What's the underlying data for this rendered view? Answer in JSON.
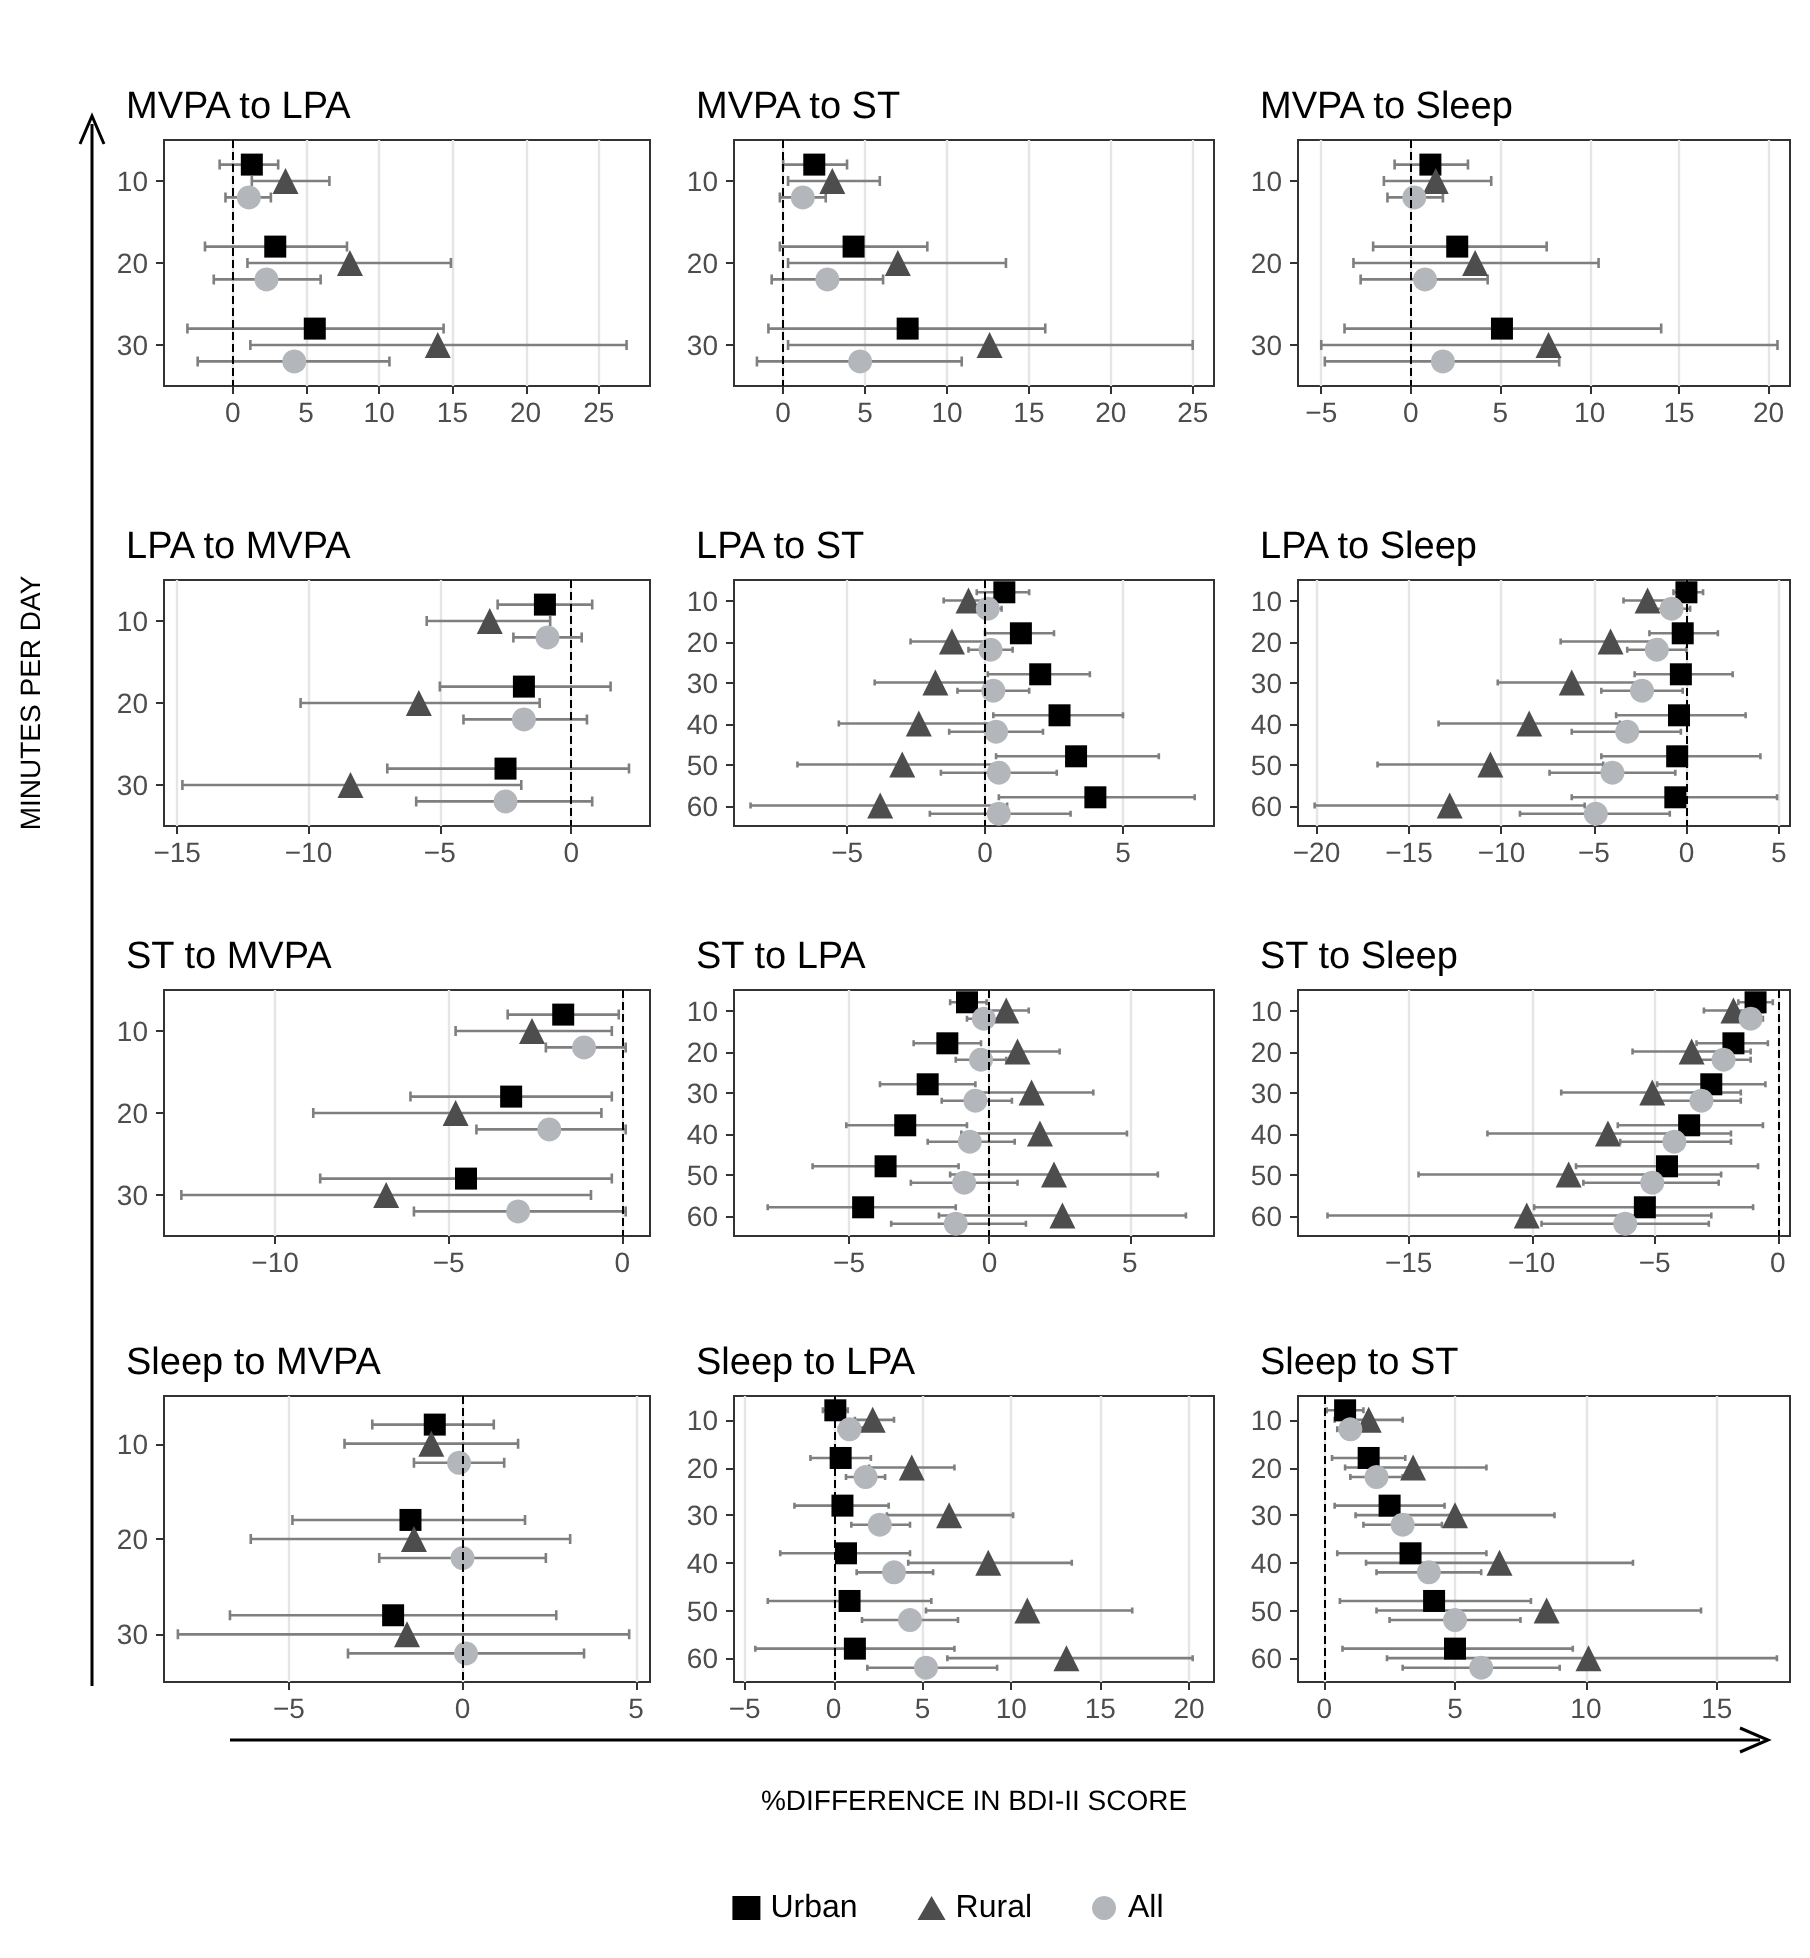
{
  "chart_data": [
    {
      "type": "scatter",
      "title": "MVPA to LPA",
      "orientation": "horizontal",
      "categories": [
        "10",
        "20",
        "30"
      ],
      "xlim": [
        -4.7,
        28.5
      ],
      "xticks": [
        0,
        5,
        10,
        15,
        20,
        25
      ],
      "grid": true,
      "ref_lines": [
        {
          "axis": "x",
          "value": 0,
          "line_style": "dashed",
          "color": "#000000"
        }
      ],
      "series": [
        {
          "color": "#000000",
          "marker": "square",
          "values": [
            1.3,
            2.9,
            5.6
          ],
          "errors": [
            [
              -0.9,
              3.1
            ],
            [
              -1.9,
              7.8
            ],
            [
              -3.1,
              14.4
            ]
          ]
        },
        {
          "color": "#4d4d4d",
          "marker": "triangle",
          "values": [
            3.6,
            8.0,
            14.0
          ],
          "errors": [
            [
              1.3,
              6.6
            ],
            [
              1.0,
              14.9
            ],
            [
              1.2,
              26.9
            ]
          ]
        },
        {
          "color": "#b3b6ba",
          "marker": "circle",
          "values": [
            1.1,
            2.3,
            4.2
          ],
          "errors": [
            [
              -0.5,
              2.6
            ],
            [
              -1.3,
              6.0
            ],
            [
              -2.4,
              10.7
            ]
          ]
        }
      ]
    },
    {
      "type": "scatter",
      "title": "MVPA to ST",
      "orientation": "horizontal",
      "categories": [
        "10",
        "20",
        "30"
      ],
      "xlim": [
        -3.0,
        26.3
      ],
      "xticks": [
        0,
        5,
        10,
        15,
        20,
        25
      ],
      "grid": true,
      "ref_lines": [
        {
          "axis": "x",
          "value": 0,
          "line_style": "dashed",
          "color": "#000000"
        }
      ],
      "series": [
        {
          "color": "#000000",
          "marker": "square",
          "values": [
            1.9,
            4.3,
            7.6
          ],
          "errors": [
            [
              0,
              3.9
            ],
            [
              -0.2,
              8.8
            ],
            [
              -0.9,
              16.0
            ]
          ]
        },
        {
          "color": "#4d4d4d",
          "marker": "triangle",
          "values": [
            3.0,
            7.0,
            12.6
          ],
          "errors": [
            [
              0.3,
              5.9
            ],
            [
              0.3,
              13.6
            ],
            [
              0.3,
              25.0
            ]
          ]
        },
        {
          "color": "#b3b6ba",
          "marker": "circle",
          "values": [
            1.2,
            2.7,
            4.7
          ],
          "errors": [
            [
              -0.2,
              2.6
            ],
            [
              -0.7,
              6.1
            ],
            [
              -1.6,
              10.9
            ]
          ]
        }
      ]
    },
    {
      "type": "scatter",
      "title": "MVPA to Sleep",
      "orientation": "horizontal",
      "categories": [
        "10",
        "20",
        "30"
      ],
      "xlim": [
        -6.3,
        21.2
      ],
      "xticks": [
        -5,
        0,
        5,
        10,
        15,
        20
      ],
      "grid": true,
      "ref_lines": [
        {
          "axis": "x",
          "value": 0,
          "line_style": "dashed",
          "color": "#000000"
        }
      ],
      "series": [
        {
          "color": "#000000",
          "marker": "square",
          "values": [
            1.1,
            2.6,
            5.1
          ],
          "errors": [
            [
              -0.9,
              3.2
            ],
            [
              -2.1,
              7.6
            ],
            [
              -3.7,
              14.0
            ]
          ]
        },
        {
          "color": "#4d4d4d",
          "marker": "triangle",
          "values": [
            1.4,
            3.6,
            7.7
          ],
          "errors": [
            [
              -1.5,
              4.5
            ],
            [
              -3.2,
              10.5
            ],
            [
              -5.0,
              20.5
            ]
          ]
        },
        {
          "color": "#b3b6ba",
          "marker": "circle",
          "values": [
            0.2,
            0.8,
            1.8
          ],
          "errors": [
            [
              -1.3,
              1.8
            ],
            [
              -2.8,
              4.3
            ],
            [
              -4.8,
              8.3
            ]
          ]
        }
      ]
    },
    {
      "type": "scatter",
      "title": "LPA to MVPA",
      "ylabel": "MINUTES PER DAY",
      "orientation": "horizontal",
      "categories": [
        "10",
        "20",
        "30"
      ],
      "xlim": [
        -15.5,
        3.0
      ],
      "xticks": [
        -15,
        -10,
        -5,
        0
      ],
      "grid": true,
      "ref_lines": [
        {
          "axis": "x",
          "value": 0,
          "line_style": "dashed",
          "color": "#000000"
        }
      ],
      "series": [
        {
          "color": "#000000",
          "marker": "square",
          "values": [
            -1.0,
            -1.8,
            -2.5
          ],
          "errors": [
            [
              -2.8,
              0.8
            ],
            [
              -5.0,
              1.5
            ],
            [
              -7.0,
              2.2
            ]
          ]
        },
        {
          "color": "#4d4d4d",
          "marker": "triangle",
          "values": [
            -3.1,
            -5.8,
            -8.4
          ],
          "errors": [
            [
              -5.5,
              -0.8
            ],
            [
              -10.3,
              -1.2
            ],
            [
              -14.8,
              -1.9
            ]
          ]
        },
        {
          "color": "#b3b6ba",
          "marker": "circle",
          "values": [
            -0.9,
            -1.8,
            -2.5
          ],
          "errors": [
            [
              -2.2,
              0.4
            ],
            [
              -4.1,
              0.6
            ],
            [
              -5.9,
              0.8
            ]
          ]
        }
      ]
    },
    {
      "type": "scatter",
      "title": "LPA to ST",
      "orientation": "horizontal",
      "categories": [
        "10",
        "20",
        "30",
        "40",
        "50",
        "60"
      ],
      "xlim": [
        -9.1,
        8.3
      ],
      "xticks": [
        -5,
        0,
        5
      ],
      "grid": true,
      "ref_lines": [
        {
          "axis": "x",
          "value": 0,
          "line_style": "dashed",
          "color": "#000000"
        }
      ],
      "series": [
        {
          "color": "#000000",
          "marker": "square",
          "values": [
            0.7,
            1.3,
            2.0,
            2.7,
            3.3,
            4.0
          ],
          "errors": [
            [
              -0.3,
              1.6
            ],
            [
              0,
              2.5
            ],
            [
              0.1,
              3.8
            ],
            [
              0.3,
              5.0
            ],
            [
              0.4,
              6.3
            ],
            [
              0.5,
              7.6
            ]
          ]
        },
        {
          "color": "#4d4d4d",
          "marker": "triangle",
          "values": [
            -0.6,
            -1.2,
            -1.8,
            -2.4,
            -3.0,
            -3.8
          ],
          "errors": [
            [
              -1.5,
              0.3
            ],
            [
              -2.7,
              0.2
            ],
            [
              -4.0,
              0.3
            ],
            [
              -5.3,
              0.4
            ],
            [
              -6.8,
              0.6
            ],
            [
              -8.5,
              0.8
            ]
          ]
        },
        {
          "color": "#b3b6ba",
          "marker": "circle",
          "values": [
            0.1,
            0.2,
            0.3,
            0.4,
            0.5,
            0.5
          ],
          "errors": [
            [
              -0.4,
              0.6
            ],
            [
              -0.6,
              1.0
            ],
            [
              -1.0,
              1.6
            ],
            [
              -1.3,
              2.1
            ],
            [
              -1.6,
              2.6
            ],
            [
              -2.0,
              3.1
            ]
          ]
        }
      ]
    },
    {
      "type": "scatter",
      "title": "LPA to Sleep",
      "orientation": "horizontal",
      "categories": [
        "10",
        "20",
        "30",
        "40",
        "50",
        "60"
      ],
      "xlim": [
        -21,
        5.6
      ],
      "xticks": [
        -20,
        -15,
        -10,
        -5,
        0,
        5
      ],
      "grid": true,
      "ref_lines": [
        {
          "axis": "x",
          "value": 0,
          "line_style": "dashed",
          "color": "#000000"
        }
      ],
      "series": [
        {
          "color": "#000000",
          "marker": "square",
          "values": [
            0,
            -0.2,
            -0.3,
            -0.4,
            -0.5,
            -0.6
          ],
          "errors": [
            [
              -0.7,
              0.9
            ],
            [
              -2.0,
              1.7
            ],
            [
              -2.8,
              2.5
            ],
            [
              -3.8,
              3.2
            ],
            [
              -4.6,
              4.0
            ],
            [
              -6.2,
              4.9
            ]
          ]
        },
        {
          "color": "#4d4d4d",
          "marker": "triangle",
          "values": [
            -2.1,
            -4.1,
            -6.2,
            -8.5,
            -10.6,
            -12.8
          ],
          "errors": [
            [
              -3.4,
              -0.7
            ],
            [
              -6.8,
              -1.4
            ],
            [
              -10.2,
              -2.3
            ],
            [
              -13.4,
              -3.6
            ],
            [
              -16.7,
              -4.5
            ],
            [
              -20.1,
              -5.5
            ]
          ]
        },
        {
          "color": "#b3b6ba",
          "marker": "circle",
          "values": [
            -0.8,
            -1.6,
            -2.4,
            -3.2,
            -4.0,
            -4.9
          ],
          "errors": [
            [
              -1.7,
              0.2
            ],
            [
              -3.2,
              0
            ],
            [
              -4.6,
              -0.2
            ],
            [
              -6.2,
              -0.3
            ],
            [
              -7.4,
              -0.6
            ],
            [
              -9.0,
              -0.9
            ]
          ]
        }
      ]
    },
    {
      "type": "scatter",
      "title": "ST to MVPA",
      "orientation": "horizontal",
      "categories": [
        "10",
        "20",
        "30"
      ],
      "xlim": [
        -13.2,
        0.8
      ],
      "xticks": [
        -10,
        -5,
        0
      ],
      "grid": true,
      "ref_lines": [
        {
          "axis": "x",
          "value": 0,
          "line_style": "dashed",
          "color": "#000000"
        }
      ],
      "series": [
        {
          "color": "#000000",
          "marker": "square",
          "values": [
            -1.7,
            -3.2,
            -4.5
          ],
          "errors": [
            [
              -3.3,
              -0.1
            ],
            [
              -6.1,
              -0.3
            ],
            [
              -8.7,
              -0.3
            ]
          ]
        },
        {
          "color": "#4d4d4d",
          "marker": "triangle",
          "values": [
            -2.6,
            -4.8,
            -6.8
          ],
          "errors": [
            [
              -4.8,
              -0.3
            ],
            [
              -8.9,
              -0.6
            ],
            [
              -12.7,
              -0.9
            ]
          ]
        },
        {
          "color": "#b3b6ba",
          "marker": "circle",
          "values": [
            -1.1,
            -2.1,
            -3.0
          ],
          "errors": [
            [
              -2.2,
              0.1
            ],
            [
              -4.2,
              0.1
            ],
            [
              -6.0,
              0.1
            ]
          ]
        }
      ]
    },
    {
      "type": "scatter",
      "title": "ST to LPA",
      "orientation": "horizontal",
      "categories": [
        "10",
        "20",
        "30",
        "40",
        "50",
        "60"
      ],
      "xlim": [
        -9.1,
        8.0
      ],
      "xticks": [
        -5,
        0,
        5
      ],
      "grid": true,
      "ref_lines": [
        {
          "axis": "x",
          "value": 0,
          "line_style": "dashed",
          "color": "#000000"
        }
      ],
      "series": [
        {
          "color": "#000000",
          "marker": "square",
          "values": [
            -0.8,
            -1.5,
            -2.2,
            -3.0,
            -3.7,
            -4.5
          ],
          "errors": [
            [
              -1.4,
              -0.1
            ],
            [
              -2.7,
              -0.3
            ],
            [
              -3.9,
              -0.5
            ],
            [
              -5.1,
              -0.8
            ],
            [
              -6.3,
              -1.1
            ],
            [
              -7.9,
              -1.2
            ]
          ]
        },
        {
          "color": "#4d4d4d",
          "marker": "triangle",
          "values": [
            0.6,
            1.0,
            1.5,
            1.8,
            2.3,
            2.6
          ],
          "errors": [
            [
              -0.5,
              1.4
            ],
            [
              -0.4,
              2.5
            ],
            [
              -0.6,
              3.7
            ],
            [
              -1.0,
              4.9
            ],
            [
              -1.4,
              6.0
            ],
            [
              -1.8,
              7.0
            ]
          ]
        },
        {
          "color": "#b3b6ba",
          "marker": "circle",
          "values": [
            -0.2,
            -0.3,
            -0.5,
            -0.7,
            -0.9,
            -1.2
          ],
          "errors": [
            [
              -0.8,
              0.5
            ],
            [
              -1.2,
              0.6
            ],
            [
              -1.7,
              0.8
            ],
            [
              -2.2,
              0.9
            ],
            [
              -2.8,
              1.0
            ],
            [
              -3.5,
              1.3
            ]
          ]
        }
      ]
    },
    {
      "type": "scatter",
      "title": "ST to Sleep",
      "orientation": "horizontal",
      "categories": [
        "10",
        "20",
        "30",
        "40",
        "50",
        "60"
      ],
      "xlim": [
        -19.5,
        0.5
      ],
      "xticks": [
        -15,
        -10,
        -5,
        0
      ],
      "grid": true,
      "ref_lines": [
        {
          "axis": "x",
          "value": 0,
          "line_style": "dashed",
          "color": "#000000"
        }
      ],
      "series": [
        {
          "color": "#000000",
          "marker": "square",
          "values": [
            -0.9,
            -1.8,
            -2.7,
            -3.6,
            -4.5,
            -5.4
          ],
          "errors": [
            [
              -1.6,
              -0.2
            ],
            [
              -3.3,
              -0.4
            ],
            [
              -4.9,
              -0.5
            ],
            [
              -6.5,
              -0.6
            ],
            [
              -8.2,
              -0.8
            ],
            [
              -9.9,
              -1.0
            ]
          ]
        },
        {
          "color": "#4d4d4d",
          "marker": "triangle",
          "values": [
            -1.8,
            -3.5,
            -5.1,
            -6.9,
            -8.5,
            -10.2
          ],
          "errors": [
            [
              -3.0,
              -0.6
            ],
            [
              -5.9,
              -1.1
            ],
            [
              -8.8,
              -1.5
            ],
            [
              -11.8,
              -1.9
            ],
            [
              -14.6,
              -2.3
            ],
            [
              -18.3,
              -2.7
            ]
          ]
        },
        {
          "color": "#b3b6ba",
          "marker": "circle",
          "values": [
            -1.1,
            -2.2,
            -3.1,
            -4.2,
            -5.1,
            -6.2
          ],
          "errors": [
            [
              -1.6,
              -0.6
            ],
            [
              -3.2,
              -1.1
            ],
            [
              -4.8,
              -1.5
            ],
            [
              -6.4,
              -1.9
            ],
            [
              -7.9,
              -2.4
            ],
            [
              -9.6,
              -2.8
            ]
          ]
        }
      ]
    },
    {
      "type": "scatter",
      "title": "Sleep to MVPA",
      "orientation": "horizontal",
      "categories": [
        "10",
        "20",
        "30"
      ],
      "xlim": [
        -8.6,
        5.4
      ],
      "xticks": [
        -5,
        0,
        5
      ],
      "grid": true,
      "ref_lines": [
        {
          "axis": "x",
          "value": 0,
          "line_style": "dashed",
          "color": "#000000"
        }
      ],
      "series": [
        {
          "color": "#000000",
          "marker": "square",
          "values": [
            -0.8,
            -1.5,
            -2.0
          ],
          "errors": [
            [
              -2.6,
              0.9
            ],
            [
              -4.9,
              1.8
            ],
            [
              -6.7,
              2.7
            ]
          ]
        },
        {
          "color": "#4d4d4d",
          "marker": "triangle",
          "values": [
            -0.9,
            -1.4,
            -1.6
          ],
          "errors": [
            [
              -3.4,
              1.6
            ],
            [
              -6.1,
              3.1
            ],
            [
              -8.2,
              4.8
            ]
          ]
        },
        {
          "color": "#b3b6ba",
          "marker": "circle",
          "values": [
            -0.1,
            0,
            0.1
          ],
          "errors": [
            [
              -1.4,
              1.2
            ],
            [
              -2.4,
              2.4
            ],
            [
              -3.3,
              3.5
            ]
          ]
        }
      ]
    },
    {
      "type": "scatter",
      "title": "Sleep to LPA",
      "xlabel": "%DIFFERENCE IN BDI-II SCORE",
      "legend": "bottom",
      "orientation": "horizontal",
      "categories": [
        "10",
        "20",
        "30",
        "40",
        "50",
        "60"
      ],
      "xlim": [
        -5.6,
        21.4
      ],
      "xticks": [
        -5,
        0,
        5,
        10,
        15,
        20
      ],
      "grid": true,
      "ref_lines": [
        {
          "axis": "x",
          "value": 0,
          "line_style": "dashed",
          "color": "#000000"
        }
      ],
      "series": [
        {
          "name": "Urban",
          "color": "#000000",
          "marker": "square",
          "values": [
            0.1,
            0.4,
            0.5,
            0.7,
            0.9,
            1.2
          ],
          "errors": [
            [
              -0.6,
              0.8
            ],
            [
              -1.3,
              2.1
            ],
            [
              -2.2,
              3.1
            ],
            [
              -3.0,
              4.3
            ],
            [
              -3.7,
              5.5
            ],
            [
              -4.4,
              6.8
            ]
          ]
        },
        {
          "name": "Rural",
          "color": "#4d4d4d",
          "marker": "triangle",
          "values": [
            2.2,
            4.4,
            6.5,
            8.7,
            10.9,
            13.1
          ],
          "errors": [
            [
              1.2,
              3.4
            ],
            [
              2.0,
              6.8
            ],
            [
              3.0,
              10.1
            ],
            [
              4.2,
              13.4
            ],
            [
              5.2,
              16.8
            ],
            [
              6.4,
              20.2
            ]
          ]
        },
        {
          "name": "All",
          "color": "#b3b6ba",
          "marker": "circle",
          "values": [
            0.9,
            1.8,
            2.6,
            3.4,
            4.3,
            5.2
          ],
          "errors": [
            [
              0.3,
              1.6
            ],
            [
              0.7,
              2.9
            ],
            [
              1.0,
              4.3
            ],
            [
              1.3,
              5.6
            ],
            [
              1.6,
              7.0
            ],
            [
              1.9,
              9.2
            ]
          ]
        }
      ]
    },
    {
      "type": "scatter",
      "title": "Sleep to ST",
      "orientation": "horizontal",
      "categories": [
        "10",
        "20",
        "30",
        "40",
        "50",
        "60"
      ],
      "xlim": [
        -1.0,
        17.8
      ],
      "xticks": [
        0,
        5,
        10,
        15
      ],
      "grid": true,
      "ref_lines": [
        {
          "axis": "x",
          "value": 0,
          "line_style": "dashed",
          "color": "#000000"
        }
      ],
      "series": [
        {
          "color": "#000000",
          "marker": "square",
          "values": [
            0.8,
            1.7,
            2.5,
            3.3,
            4.2,
            5.0
          ],
          "errors": [
            [
              0.1,
              1.5
            ],
            [
              0.3,
              3.1
            ],
            [
              0.4,
              4.6
            ],
            [
              0.5,
              6.2
            ],
            [
              0.6,
              7.9
            ],
            [
              0.7,
              9.5
            ]
          ]
        },
        {
          "color": "#4d4d4d",
          "marker": "triangle",
          "values": [
            1.7,
            3.4,
            5.0,
            6.7,
            8.5,
            10.1
          ],
          "errors": [
            [
              0.4,
              3.0
            ],
            [
              0.8,
              6.2
            ],
            [
              1.2,
              8.8
            ],
            [
              1.6,
              11.8
            ],
            [
              2.0,
              14.4
            ],
            [
              2.4,
              17.3
            ]
          ]
        },
        {
          "color": "#b3b6ba",
          "marker": "circle",
          "values": [
            1.0,
            2.0,
            3.0,
            4.0,
            5.0,
            6.0
          ],
          "errors": [
            [
              0.5,
              1.5
            ],
            [
              1.0,
              3.0
            ],
            [
              1.5,
              4.5
            ],
            [
              2.0,
              6.0
            ],
            [
              2.5,
              7.5
            ],
            [
              3.0,
              9.0
            ]
          ]
        }
      ]
    }
  ]
}
